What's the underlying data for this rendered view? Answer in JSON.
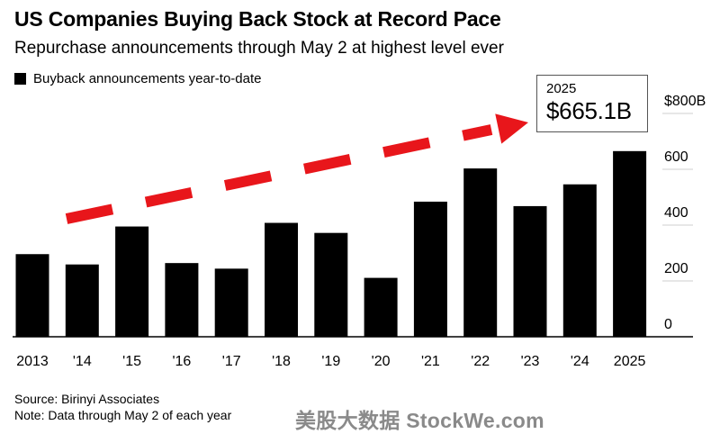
{
  "header": {
    "title": "US Companies Buying Back Stock at Record Pace",
    "subtitle": "Repurchase announcements through May 2 at highest level ever"
  },
  "chart_data": {
    "type": "bar",
    "categories": [
      "2013",
      "'14",
      "'15",
      "'16",
      "'17",
      "'18",
      "'19",
      "'20",
      "'21",
      "'22",
      "'23",
      "'24",
      "2025"
    ],
    "series": [
      {
        "name": "Buyback announcements year-to-date",
        "values": [
          296,
          259,
          395,
          264,
          244,
          408,
          372,
          211,
          484,
          603,
          468,
          546,
          665.1
        ],
        "color": "#000000"
      }
    ],
    "yticks": [
      "0",
      "200",
      "400",
      "600",
      "$800B"
    ],
    "ylim": [
      0,
      800
    ],
    "grid": true,
    "legend_position": "top-left",
    "callout": {
      "year": "2025",
      "value": "$665.1B"
    },
    "arrow_color": "#e8161b"
  },
  "footer": {
    "source": "Source: Birinyi Associates",
    "note": "Note: Data through May 2 of each year"
  },
  "watermark": "美股大数据 StockWe.com"
}
